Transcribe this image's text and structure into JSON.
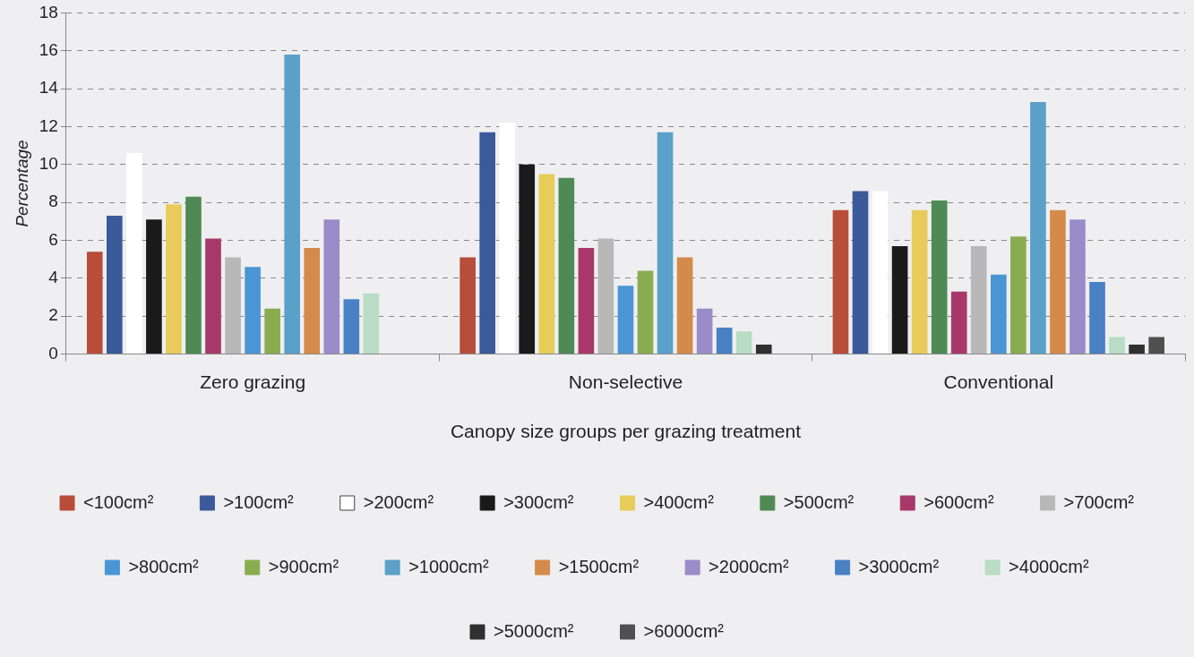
{
  "chart_data": {
    "type": "bar",
    "xlabel": "Canopy size groups per grazing treatment",
    "ylabel": "Percentage",
    "categories": [
      "Zero grazing",
      "Non-selective",
      "Conventional"
    ],
    "ylim": [
      0,
      18
    ],
    "yticks": [
      0,
      2,
      4,
      6,
      8,
      10,
      12,
      14,
      16,
      18
    ],
    "grid": "y",
    "legend": "bottom",
    "series": [
      {
        "name": "<100cm²",
        "color": "#b84d3a",
        "values": [
          5.4,
          5.1,
          7.6
        ]
      },
      {
        "name": ">100cm²",
        "color": "#3a5a9a",
        "values": [
          7.3,
          11.7,
          8.6
        ]
      },
      {
        "name": ">200cm²",
        "color": "#ffffff",
        "values": [
          10.6,
          12.2,
          8.6
        ]
      },
      {
        "name": ">300cm²",
        "color": "#1a1a1a",
        "values": [
          7.1,
          10.0,
          5.7
        ]
      },
      {
        "name": ">400cm²",
        "color": "#e8cc5a",
        "values": [
          7.9,
          9.5,
          7.6
        ]
      },
      {
        "name": ">500cm²",
        "color": "#4f8a55",
        "values": [
          8.3,
          9.3,
          8.1
        ]
      },
      {
        "name": ">600cm²",
        "color": "#a8386a",
        "values": [
          6.1,
          5.6,
          3.3
        ]
      },
      {
        "name": ">700cm²",
        "color": "#b8b8b8",
        "values": [
          5.1,
          6.1,
          5.7
        ]
      },
      {
        "name": ">800cm²",
        "color": "#4a96d4",
        "values": [
          4.6,
          3.6,
          4.2
        ]
      },
      {
        "name": ">900cm²",
        "color": "#8aac50",
        "values": [
          2.4,
          4.4,
          6.2
        ]
      },
      {
        "name": ">1000cm²",
        "color": "#5aa0c8",
        "values": [
          15.8,
          11.7,
          13.3
        ]
      },
      {
        "name": ">1500cm²",
        "color": "#d48a4a",
        "values": [
          5.6,
          5.1,
          7.6
        ]
      },
      {
        "name": ">2000cm²",
        "color": "#9a8cc8",
        "values": [
          7.1,
          2.4,
          7.1
        ]
      },
      {
        "name": ">3000cm²",
        "color": "#4a80c4",
        "values": [
          2.9,
          1.4,
          3.8
        ]
      },
      {
        "name": ">4000cm²",
        "color": "#b8dcc4",
        "values": [
          3.2,
          1.2,
          0.9
        ]
      },
      {
        "name": ">5000cm²",
        "color": "#303030",
        "values": [
          null,
          0.5,
          0.5
        ]
      },
      {
        "name": ">6000cm²",
        "color": "#505050",
        "values": [
          null,
          null,
          0.9
        ]
      }
    ]
  }
}
